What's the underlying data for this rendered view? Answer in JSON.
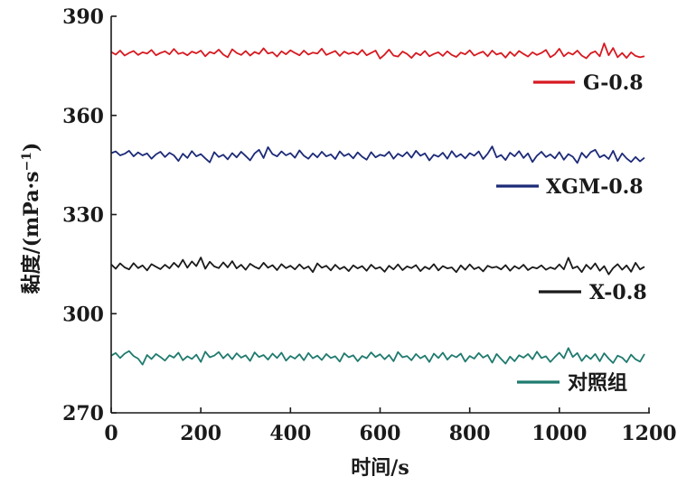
{
  "chart_data": {
    "type": "line",
    "title": "",
    "xlabel": "时间/s",
    "ylabel": "黏度/(mPa·s",
    "ylabel_sup": "−1",
    "ylabel_close": ")",
    "xlim": [
      0,
      1200
    ],
    "ylim": [
      270,
      390
    ],
    "xticks": [
      0,
      200,
      400,
      600,
      800,
      1000,
      1200
    ],
    "yticks": [
      270,
      300,
      330,
      360,
      390
    ],
    "grid": false,
    "legend": "inline-right",
    "x_step": 10,
    "x_start": 0,
    "x_end": 1190,
    "series": [
      {
        "name": "G-0.8",
        "color": "#d71920",
        "mean": 378.6,
        "values": [
          379.2,
          378.4,
          379.6,
          378.1,
          378.9,
          379.5,
          378.3,
          379.1,
          378.7,
          379.8,
          378.2,
          378.9,
          379.4,
          378.5,
          380.1,
          378.6,
          379.0,
          378.2,
          379.3,
          378.8,
          379.6,
          377.9,
          379.2,
          378.7,
          379.9,
          378.4,
          377.6,
          380.0,
          378.9,
          378.3,
          379.5,
          378.1,
          379.2,
          378.6,
          380.3,
          378.7,
          379.1,
          377.8,
          379.4,
          378.5,
          379.7,
          378.9,
          378.2,
          379.6,
          378.4,
          379.0,
          378.7,
          380.2,
          378.3,
          378.9,
          379.5,
          378.0,
          379.3,
          378.6,
          379.1,
          378.4,
          379.8,
          378.2,
          378.9,
          379.6,
          377.2,
          378.4,
          379.9,
          378.1,
          377.8,
          379.3,
          378.6,
          377.4,
          378.9,
          378.2,
          379.5,
          377.9,
          378.6,
          379.1,
          378.0,
          379.4,
          378.3,
          377.7,
          379.0,
          378.5,
          379.7,
          378.1,
          378.8,
          379.3,
          377.9,
          379.6,
          378.4,
          378.9,
          377.5,
          379.2,
          378.0,
          379.5,
          378.6,
          377.8,
          379.1,
          378.3,
          378.9,
          379.8,
          377.6,
          378.5,
          380.2,
          377.9,
          379.0,
          378.4,
          379.6,
          378.1,
          377.3,
          378.8,
          379.4,
          377.9,
          381.8,
          378.2,
          380.4,
          377.6,
          378.9,
          377.4,
          379.1,
          378.0,
          377.6,
          377.9
        ]
      },
      {
        "name": "XGM-0.8",
        "color": "#1c2a78",
        "mean": 347.8,
        "values": [
          348.6,
          349.1,
          347.9,
          348.4,
          349.3,
          347.6,
          348.8,
          347.9,
          348.5,
          346.9,
          348.2,
          349.0,
          347.4,
          348.7,
          347.9,
          346.2,
          348.4,
          347.1,
          349.2,
          347.6,
          348.3,
          347.0,
          345.8,
          348.9,
          347.4,
          348.1,
          346.7,
          348.6,
          347.3,
          349.0,
          347.7,
          346.4,
          348.5,
          349.6,
          347.1,
          350.4,
          348.3,
          347.6,
          349.1,
          347.9,
          348.6,
          347.2,
          349.4,
          347.8,
          346.9,
          348.5,
          347.3,
          349.0,
          347.6,
          348.2,
          346.8,
          349.1,
          347.7,
          348.4,
          347.0,
          348.8,
          347.5,
          346.6,
          348.9,
          347.3,
          348.1,
          347.7,
          349.0,
          346.9,
          348.4,
          347.6,
          348.9,
          347.2,
          349.3,
          347.8,
          348.5,
          346.4,
          348.1,
          347.5,
          348.7,
          346.9,
          349.2,
          347.4,
          348.3,
          347.0,
          348.6,
          347.8,
          349.1,
          346.8,
          348.4,
          350.6,
          347.3,
          348.0,
          346.5,
          348.7,
          347.6,
          349.2,
          347.1,
          348.5,
          345.9,
          347.8,
          349.0,
          347.4,
          348.2,
          347.0,
          348.9,
          346.6,
          348.3,
          347.5,
          345.6,
          348.7,
          347.2,
          348.9,
          349.6,
          347.3,
          348.0,
          346.8,
          349.3,
          346.2,
          348.5,
          347.0,
          345.9,
          347.4,
          346.1,
          347.2
        ]
      },
      {
        "name": "X-0.8",
        "color": "#1a1a1a",
        "mean": 314.0,
        "values": [
          314.9,
          313.6,
          315.2,
          314.0,
          313.4,
          315.3,
          313.8,
          314.6,
          313.1,
          315.0,
          314.2,
          313.5,
          314.8,
          313.7,
          315.4,
          314.1,
          316.3,
          313.9,
          315.8,
          314.4,
          317.0,
          313.6,
          315.7,
          314.3,
          313.8,
          315.5,
          314.0,
          315.9,
          313.7,
          314.8,
          313.3,
          315.1,
          314.2,
          313.6,
          315.4,
          313.9,
          314.7,
          313.2,
          315.0,
          313.8,
          314.5,
          313.4,
          314.9,
          313.6,
          314.3,
          312.6,
          315.2,
          313.9,
          314.5,
          313.1,
          314.8,
          313.5,
          314.2,
          312.9,
          314.6,
          313.7,
          314.4,
          313.0,
          314.8,
          313.6,
          314.1,
          312.7,
          314.5,
          313.4,
          314.9,
          313.2,
          314.3,
          313.8,
          314.7,
          312.9,
          314.2,
          313.5,
          315.0,
          313.1,
          314.4,
          313.7,
          314.0,
          312.6,
          314.6,
          313.3,
          314.9,
          313.5,
          314.1,
          312.8,
          314.5,
          313.9,
          314.2,
          313.4,
          314.7,
          313.0,
          314.4,
          313.6,
          314.8,
          313.2,
          314.1,
          313.7,
          314.6,
          313.3,
          314.0,
          313.5,
          314.9,
          313.4,
          316.9,
          313.7,
          314.3,
          312.6,
          314.8,
          313.5,
          315.2,
          313.0,
          314.4,
          311.9,
          313.8,
          315.0,
          313.3,
          314.6,
          312.7,
          315.4,
          313.4,
          314.2
        ]
      },
      {
        "name": "对照组",
        "color": "#1f7a6e",
        "mean": 287.0,
        "values": [
          287.3,
          288.1,
          286.6,
          287.9,
          288.7,
          287.2,
          286.4,
          284.6,
          287.5,
          286.3,
          287.8,
          286.9,
          285.8,
          287.4,
          286.7,
          288.2,
          285.9,
          287.1,
          286.3,
          287.6,
          285.4,
          288.5,
          286.8,
          287.3,
          288.4,
          286.5,
          287.8,
          286.2,
          288.0,
          286.7,
          287.4,
          285.7,
          288.3,
          286.9,
          287.5,
          286.1,
          287.9,
          286.6,
          288.2,
          285.8,
          287.2,
          286.4,
          287.7,
          285.9,
          288.1,
          286.5,
          287.3,
          286.0,
          287.8,
          286.6,
          287.1,
          285.5,
          288.0,
          286.8,
          287.4,
          285.6,
          287.2,
          286.5,
          288.3,
          286.9,
          287.7,
          286.2,
          287.5,
          285.6,
          288.4,
          286.8,
          287.2,
          285.9,
          287.8,
          286.5,
          287.3,
          285.4,
          287.9,
          286.6,
          288.2,
          286.1,
          287.5,
          286.8,
          287.9,
          285.5,
          287.2,
          286.4,
          288.1,
          286.7,
          287.5,
          285.2,
          287.8,
          286.3,
          284.9,
          287.0,
          285.6,
          287.4,
          286.7,
          287.8,
          286.2,
          288.5,
          286.6,
          287.1,
          285.4,
          286.9,
          288.2,
          286.5,
          289.6,
          286.9,
          288.1,
          285.7,
          287.4,
          286.3,
          287.8,
          285.6,
          288.0,
          286.4,
          285.1,
          287.3,
          286.7,
          285.3,
          287.6,
          286.2,
          285.5,
          287.8
        ]
      }
    ]
  },
  "colors": {
    "axis": "#1a1a1a",
    "background": "#ffffff"
  }
}
